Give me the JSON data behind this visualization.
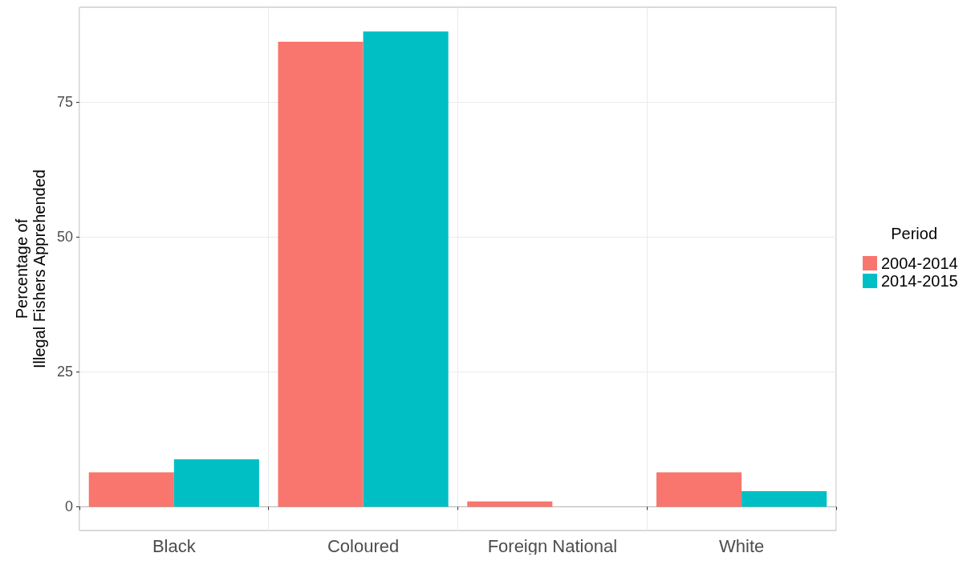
{
  "chart_data": {
    "type": "bar",
    "ylabel": "Percentage of\nIllegal Fishers Apprehended",
    "legend_title": "Period",
    "categories": [
      "Black",
      "Coloured",
      "Foreign National",
      "White"
    ],
    "series": [
      {
        "name": "2004-2014",
        "color": "#f8766d",
        "values": [
          6.4,
          86.2,
          1.0,
          6.4
        ]
      },
      {
        "name": "2014-2015",
        "color": "#00bfc4",
        "values": [
          8.8,
          88.1,
          0,
          2.9
        ]
      }
    ],
    "ylim": [
      -4.4,
      92.6
    ],
    "yticks": [
      0,
      25,
      50,
      75
    ],
    "grid": true,
    "legend": "right"
  }
}
